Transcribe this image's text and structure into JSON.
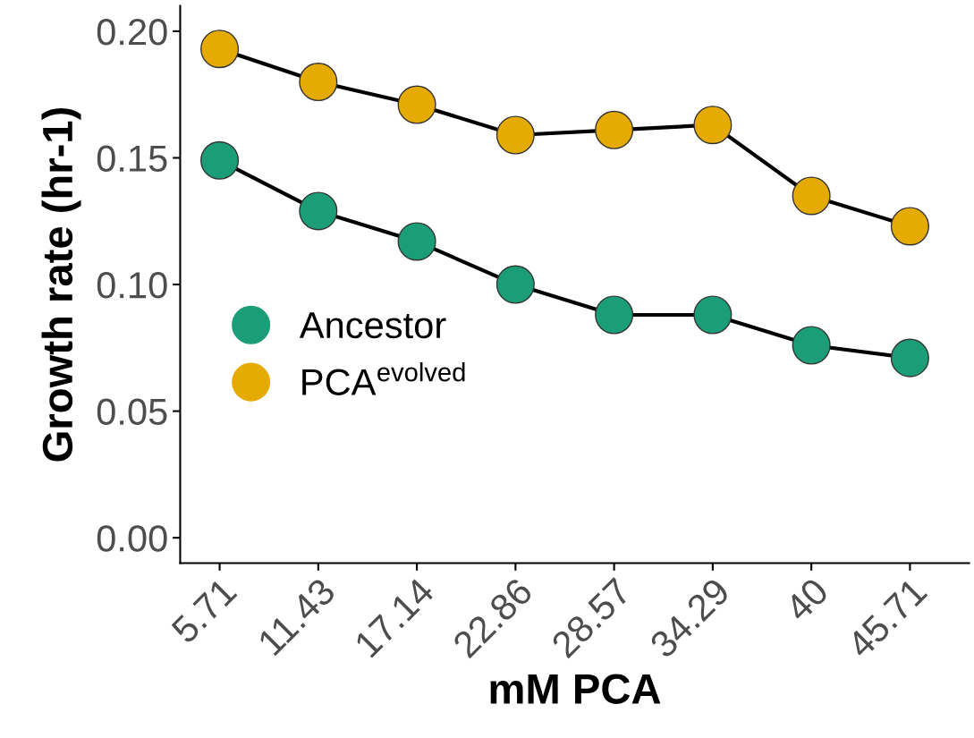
{
  "chart_data": {
    "type": "line",
    "xlabel": "mM PCA",
    "ylabel": "Growth rate (hr-1)",
    "categories": [
      "5.71",
      "11.43",
      "17.14",
      "22.86",
      "28.57",
      "34.29",
      "40",
      "45.71"
    ],
    "series": [
      {
        "name": "Ancestor",
        "color": "#1b9e77",
        "values": [
          0.149,
          0.129,
          0.117,
          0.1,
          0.088,
          0.088,
          0.076,
          0.071
        ]
      },
      {
        "name": "PCA$^{evolved}$",
        "color": "#e6ab02",
        "values": [
          0.193,
          0.18,
          0.171,
          0.159,
          0.161,
          0.163,
          0.135,
          0.123
        ]
      }
    ],
    "ylim": [
      -0.01,
      0.21
    ],
    "yticks": [
      {
        "value": 0,
        "label": "0.00"
      },
      {
        "value": 0.05,
        "label": "0.05"
      },
      {
        "value": 0.1,
        "label": "0.10"
      },
      {
        "value": 0.15,
        "label": "0.15"
      },
      {
        "value": 0.2,
        "label": "0.20"
      }
    ],
    "marker": "circle",
    "line_style": "solid",
    "grid": false,
    "legend": "left"
  }
}
